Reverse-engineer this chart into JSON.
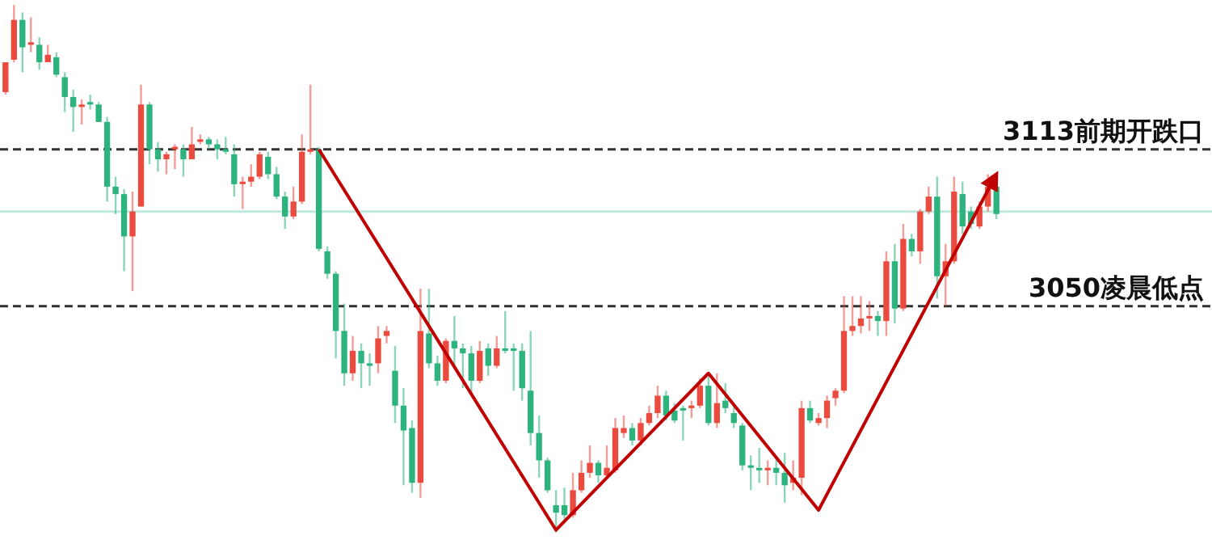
{
  "chart_data": {
    "type": "candlestick",
    "tick_labels": false,
    "ylim": [
      2956,
      3173
    ],
    "categories": [
      null,
      null,
      null,
      null,
      null,
      null,
      null,
      null,
      null,
      null,
      null,
      null,
      null,
      null,
      null,
      null,
      null,
      null,
      null,
      null,
      null,
      null,
      null,
      null,
      null,
      null,
      null,
      null,
      null,
      null,
      null,
      null,
      null,
      null,
      null,
      null,
      null,
      null,
      null,
      null,
      null,
      null,
      null,
      null,
      null,
      null,
      null,
      null,
      null,
      null,
      null,
      null,
      null,
      null,
      null,
      null,
      null,
      null,
      null,
      null,
      null,
      null,
      null,
      null,
      null,
      null,
      null,
      null,
      null,
      null,
      null,
      null,
      null,
      null,
      null,
      null,
      null,
      null,
      null,
      null,
      null,
      null,
      null,
      null,
      null,
      null,
      null,
      null,
      null,
      null,
      null,
      null,
      null,
      null,
      null,
      null,
      null,
      null,
      null,
      null,
      null,
      null,
      null,
      null,
      null,
      null,
      null,
      null,
      null,
      null,
      null,
      null,
      null,
      null,
      null,
      null,
      null,
      null
    ],
    "ohlc": [
      [
        3136,
        3148,
        3135,
        3148
      ],
      [
        3149,
        3171,
        3148,
        3165
      ],
      [
        3165,
        3168,
        3144,
        3154
      ],
      [
        3155,
        3166,
        3152,
        3156
      ],
      [
        3155,
        3158,
        3145,
        3148
      ],
      [
        3148,
        3155,
        3148,
        3151
      ],
      [
        3150,
        3152,
        3142,
        3143
      ],
      [
        3142,
        3144,
        3128,
        3134
      ],
      [
        3134,
        3137,
        3120,
        3130
      ],
      [
        3130,
        3133,
        3123,
        3131
      ],
      [
        3132,
        3135,
        3129,
        3131
      ],
      [
        3131,
        3132,
        3124,
        3124
      ],
      [
        3124,
        3126,
        3092,
        3098
      ],
      [
        3098,
        3102,
        3087,
        3095
      ],
      [
        3095,
        3097,
        3064,
        3078
      ],
      [
        3078,
        3096,
        3056,
        3088
      ],
      [
        3090,
        3139,
        3090,
        3131
      ],
      [
        3131,
        3132,
        3107,
        3113
      ],
      [
        3113,
        3116,
        3104,
        3109
      ],
      [
        3109,
        3112,
        3103,
        3111
      ],
      [
        3113,
        3115,
        3105,
        3114
      ],
      [
        3113,
        3115,
        3102,
        3109
      ],
      [
        3109,
        3122,
        3109,
        3115
      ],
      [
        3116,
        3119,
        3115,
        3117
      ],
      [
        3117,
        3118,
        3113,
        3115
      ],
      [
        3115,
        3117,
        3109,
        3113
      ],
      [
        3113,
        3118,
        3111,
        3112
      ],
      [
        3111,
        3115,
        3094,
        3099
      ],
      [
        3099,
        3102,
        3089,
        3100
      ],
      [
        3100,
        3107,
        3098,
        3102
      ],
      [
        3102,
        3112,
        3101,
        3111
      ],
      [
        3110,
        3112,
        3101,
        3103
      ],
      [
        3103,
        3106,
        3093,
        3094
      ],
      [
        3094,
        3096,
        3081,
        3086
      ],
      [
        3086,
        3098,
        3085,
        3092
      ],
      [
        3092,
        3119,
        3091,
        3112
      ],
      [
        3112,
        3139,
        3111,
        3113
      ],
      [
        3113,
        3114,
        3072,
        3073
      ],
      [
        3072,
        3074,
        3061,
        3063
      ],
      [
        3063,
        3064,
        3029,
        3040
      ],
      [
        3040,
        3051,
        3018,
        3023
      ],
      [
        3023,
        3038,
        3020,
        3032
      ],
      [
        3032,
        3035,
        3017,
        3027
      ],
      [
        3027,
        3031,
        3018,
        3026
      ],
      [
        3027,
        3042,
        3023,
        3037
      ],
      [
        3038,
        3042,
        3035,
        3040
      ],
      [
        3024,
        3034,
        3003,
        3010
      ],
      [
        3010,
        3017,
        2978,
        3000
      ],
      [
        3001,
        3004,
        2975,
        2979
      ],
      [
        2979,
        3057,
        2973,
        3040
      ],
      [
        3039,
        3057,
        3025,
        3027
      ],
      [
        3027,
        3030,
        3018,
        3020
      ],
      [
        3020,
        3037,
        3019,
        3036
      ],
      [
        3036,
        3046,
        3025,
        3033
      ],
      [
        3033,
        3035,
        3017,
        3031
      ],
      [
        3031,
        3034,
        3015,
        3020
      ],
      [
        3020,
        3036,
        3019,
        3032
      ],
      [
        3033,
        3035,
        3022,
        3026
      ],
      [
        3026,
        3038,
        3025,
        3033
      ],
      [
        3033,
        3048,
        3031,
        3032
      ],
      [
        3033,
        3035,
        3016,
        3032
      ],
      [
        3032,
        3035,
        3012,
        3017
      ],
      [
        3016,
        3040,
        2994,
        2999
      ],
      [
        2999,
        3006,
        2981,
        2988
      ],
      [
        2988,
        2989,
        2975,
        2976
      ],
      [
        2970,
        2976,
        2959,
        2967
      ],
      [
        2970,
        2977,
        2964,
        2966
      ],
      [
        2966,
        2983,
        2965,
        2976
      ],
      [
        2976,
        2988,
        2975,
        2983
      ],
      [
        2983,
        2994,
        2981,
        2987
      ],
      [
        2987,
        2988,
        2979,
        2982
      ],
      [
        2982,
        2994,
        2981,
        2985
      ],
      [
        2984,
        3005,
        2983,
        3001
      ],
      [
        2999,
        3006,
        2997,
        3001
      ],
      [
        3001,
        3003,
        2994,
        2996
      ],
      [
        2996,
        3005,
        2994,
        3003
      ],
      [
        3003,
        3010,
        3002,
        3007
      ],
      [
        3007,
        3018,
        3005,
        3014
      ],
      [
        3014,
        3016,
        3004,
        3006
      ],
      [
        3008,
        3011,
        3003,
        3004
      ],
      [
        3009,
        3010,
        2996,
        3008
      ],
      [
        3009,
        3012,
        3005,
        3010
      ],
      [
        3010,
        3021,
        3009,
        3018
      ],
      [
        3018,
        3022,
        3002,
        3003
      ],
      [
        3003,
        3023,
        3001,
        3011
      ],
      [
        3012,
        3019,
        3007,
        3009
      ],
      [
        3007,
        3010,
        3001,
        3003
      ],
      [
        3002,
        3003,
        2984,
        2986
      ],
      [
        2986,
        2990,
        2976,
        2985
      ],
      [
        2985,
        2993,
        2979,
        2984
      ],
      [
        2984,
        2988,
        2978,
        2985
      ],
      [
        2985,
        2989,
        2978,
        2983
      ],
      [
        2983,
        2991,
        2971,
        2978
      ],
      [
        2979,
        2988,
        2976,
        2981
      ],
      [
        2981,
        3012,
        2974,
        3009
      ],
      [
        3009,
        3012,
        3003,
        3004
      ],
      [
        3003,
        3007,
        3002,
        3005
      ],
      [
        3005,
        3014,
        3001,
        3012
      ],
      [
        3013,
        3017,
        3010,
        3016
      ],
      [
        3016,
        3054,
        3015,
        3040
      ],
      [
        3040,
        3054,
        3038,
        3042
      ],
      [
        3042,
        3054,
        3039,
        3045
      ],
      [
        3045,
        3052,
        3040,
        3046
      ],
      [
        3046,
        3048,
        3038,
        3044
      ],
      [
        3044,
        3072,
        3038,
        3068
      ],
      [
        3068,
        3075,
        3043,
        3049
      ],
      [
        3049,
        3083,
        3048,
        3077
      ],
      [
        3077,
        3079,
        3070,
        3072
      ],
      [
        3072,
        3089,
        3067,
        3088
      ],
      [
        3088,
        3098,
        3087,
        3094
      ],
      [
        3094,
        3102,
        3053,
        3062
      ],
      [
        3062,
        3075,
        3050,
        3068
      ],
      [
        3068,
        3102,
        3067,
        3096
      ],
      [
        3095,
        3100,
        3079,
        3082
      ],
      [
        3088,
        3090,
        3081,
        3083
      ],
      [
        3082,
        3092,
        3081,
        3090
      ],
      [
        3090,
        3103,
        3088,
        3098
      ],
      [
        3098,
        3100,
        3085,
        3087
      ]
    ],
    "series": [
      {
        "type": "line",
        "color": "#c00000",
        "values": [
          null,
          null,
          null,
          null,
          null,
          null,
          null,
          null,
          null,
          null,
          null,
          null,
          null,
          null,
          null,
          null,
          null,
          null,
          null,
          null,
          null,
          null,
          null,
          null,
          null,
          null,
          null,
          null,
          null,
          null,
          null,
          null,
          null,
          null,
          null,
          null,
          null,
          3113,
          null,
          null,
          null,
          null,
          null,
          null,
          null,
          null,
          null,
          null,
          null,
          null,
          null,
          null,
          null,
          null,
          null,
          null,
          null,
          null,
          null,
          null,
          null,
          null,
          null,
          null,
          null,
          2960,
          null,
          null,
          null,
          null,
          null,
          null,
          null,
          null,
          null,
          null,
          null,
          null,
          null,
          null,
          null,
          null,
          null,
          3023,
          null,
          null,
          null,
          null,
          null,
          null,
          null,
          null,
          null,
          null,
          null,
          null,
          2968,
          null,
          null,
          null,
          null,
          null,
          null,
          null,
          null,
          null,
          null,
          null,
          null,
          null,
          null,
          null,
          null,
          null,
          null,
          null,
          null,
          3103
        ]
      }
    ],
    "ref_lines": [
      {
        "axis": "y",
        "value": 3113,
        "label": "3113前期开跌口",
        "color": "#333333",
        "line_style": "dashed"
      },
      {
        "axis": "y",
        "value": 3050,
        "label": "3050凌晨低点",
        "color": "#333333",
        "line_style": "dashed"
      },
      {
        "axis": "y",
        "value": 3088,
        "label": null,
        "color": "#bfe9dc",
        "line_style": "solid"
      }
    ]
  }
}
